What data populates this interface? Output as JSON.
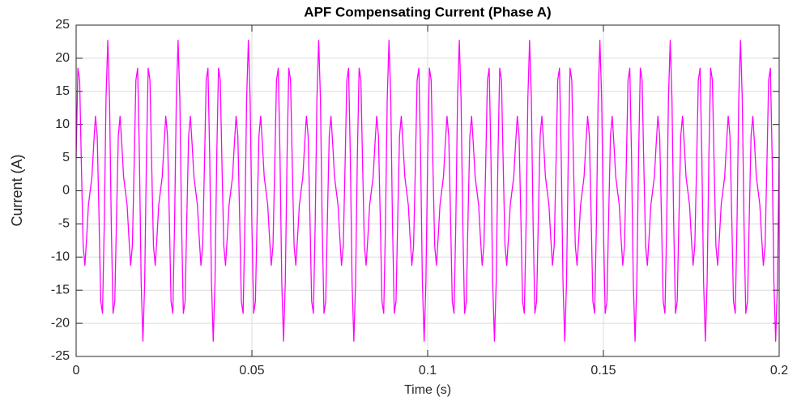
{
  "chart_data": {
    "type": "line",
    "title": "APF Compensating Current (Phase A)",
    "x_label": "Time (s)",
    "y_label": "Current (A)",
    "color": "#ff00ff",
    "grid": true,
    "xlim": [
      0,
      0.2
    ],
    "xticks": [
      0,
      0.05,
      0.1,
      0.15,
      0.2
    ],
    "ylim": [
      -25,
      25
    ],
    "yticks": [
      -25,
      -20,
      -15,
      -10,
      -5,
      0,
      5,
      10,
      15,
      20,
      25
    ],
    "x": [
      0,
      0.0005,
      0.001,
      0.0015,
      0.002,
      0.0025,
      0.003,
      0.0035,
      0.004,
      0.0045,
      0.005,
      0.0055,
      0.006,
      0.0065,
      0.007,
      0.0075,
      0.008,
      0.0085,
      0.009,
      0.0095,
      0.01,
      0.0105,
      0.011,
      0.0115,
      0.012,
      0.0125,
      0.013,
      0.0135,
      0.014,
      0.0145,
      0.015,
      0.0155,
      0.016,
      0.0165,
      0.017,
      0.0175,
      0.018,
      0.0185,
      0.019,
      0.0195,
      0.02,
      0.0205,
      0.021,
      0.0215,
      0.022,
      0.0225,
      0.023,
      0.0235,
      0.024,
      0.0245,
      0.025,
      0.0255,
      0.026,
      0.0265,
      0.027,
      0.0275,
      0.028,
      0.0285,
      0.029,
      0.0295,
      0.03,
      0.0305,
      0.031,
      0.0315,
      0.032,
      0.0325,
      0.033,
      0.0335,
      0.034,
      0.0345,
      0.035,
      0.0355,
      0.036,
      0.0365,
      0.037,
      0.0375,
      0.038,
      0.0385,
      0.039,
      0.0395,
      0.04,
      0.0405,
      0.041,
      0.0415,
      0.042,
      0.0425,
      0.043,
      0.0435,
      0.044,
      0.0445,
      0.045,
      0.0455,
      0.046,
      0.0465,
      0.047,
      0.0475,
      0.048,
      0.0485,
      0.049,
      0.0495,
      0.05,
      0.0505,
      0.051,
      0.0515,
      0.052,
      0.0525,
      0.053,
      0.0535,
      0.054,
      0.0545,
      0.055,
      0.0555,
      0.056,
      0.0565,
      0.057,
      0.0575,
      0.058,
      0.0585,
      0.059,
      0.0595,
      0.06,
      0.0605,
      0.061,
      0.0615,
      0.062,
      0.0625,
      0.063,
      0.0635,
      0.064,
      0.0645,
      0.065,
      0.0655,
      0.066,
      0.0665,
      0.067,
      0.0675,
      0.068,
      0.0685,
      0.069,
      0.0695,
      0.07,
      0.0705,
      0.071,
      0.0715,
      0.072,
      0.0725,
      0.073,
      0.0735,
      0.074,
      0.0745,
      0.075,
      0.0755,
      0.076,
      0.0765,
      0.077,
      0.0775,
      0.078,
      0.0785,
      0.079,
      0.0795,
      0.08,
      0.0805,
      0.081,
      0.0815,
      0.082,
      0.0825,
      0.083,
      0.0835,
      0.084,
      0.0845,
      0.085,
      0.0855,
      0.086,
      0.0865,
      0.087,
      0.0875,
      0.088,
      0.0885,
      0.089,
      0.0895,
      0.09,
      0.0905,
      0.091,
      0.0915,
      0.092,
      0.0925,
      0.093,
      0.0935,
      0.094,
      0.0945,
      0.095,
      0.0955,
      0.096,
      0.0965,
      0.097,
      0.0975,
      0.098,
      0.0985,
      0.099,
      0.0995,
      0.1,
      0.1005,
      0.101,
      0.1015,
      0.102,
      0.1025,
      0.103,
      0.1035,
      0.104,
      0.1045,
      0.105,
      0.1055,
      0.106,
      0.1065,
      0.107,
      0.1075,
      0.108,
      0.1085,
      0.109,
      0.1095,
      0.11,
      0.1105,
      0.111,
      0.1115,
      0.112,
      0.1125,
      0.113,
      0.1135,
      0.114,
      0.1145,
      0.115,
      0.1155,
      0.116,
      0.1165,
      0.117,
      0.1175,
      0.118,
      0.1185,
      0.119,
      0.1195,
      0.12,
      0.1205,
      0.121,
      0.1215,
      0.122,
      0.1225,
      0.123,
      0.1235,
      0.124,
      0.1245,
      0.125,
      0.1255,
      0.126,
      0.1265,
      0.127,
      0.1275,
      0.128,
      0.1285,
      0.129,
      0.1295,
      0.13,
      0.1305,
      0.131,
      0.1315,
      0.132,
      0.1325,
      0.133,
      0.1335,
      0.134,
      0.1345,
      0.135,
      0.1355,
      0.136,
      0.1365,
      0.137,
      0.1375,
      0.138,
      0.1385,
      0.139,
      0.1395,
      0.14,
      0.1405,
      0.141,
      0.1415,
      0.142,
      0.1425,
      0.143,
      0.1435,
      0.144,
      0.1445,
      0.145,
      0.1455,
      0.146,
      0.1465,
      0.147,
      0.1475,
      0.148,
      0.1485,
      0.149,
      0.1495,
      0.15,
      0.1505,
      0.151,
      0.1515,
      0.152,
      0.1525,
      0.153,
      0.1535,
      0.154,
      0.1545,
      0.155,
      0.1555,
      0.156,
      0.1565,
      0.157,
      0.1575,
      0.158,
      0.1585,
      0.159,
      0.1595,
      0.16,
      0.1605,
      0.161,
      0.1615,
      0.162,
      0.1625,
      0.163,
      0.1635,
      0.164,
      0.1645,
      0.165,
      0.1655,
      0.166,
      0.1665,
      0.167,
      0.1675,
      0.168,
      0.1685,
      0.169,
      0.1695,
      0.17,
      0.1705,
      0.171,
      0.1715,
      0.172,
      0.1725,
      0.173,
      0.1735,
      0.174,
      0.1745,
      0.175,
      0.1755,
      0.176,
      0.1765,
      0.177,
      0.1775,
      0.178,
      0.1785,
      0.179,
      0.1795,
      0.18,
      0.1805,
      0.181,
      0.1815,
      0.182,
      0.1825,
      0.183,
      0.1835,
      0.184,
      0.1845,
      0.185,
      0.1855,
      0.186,
      0.1865,
      0.187,
      0.1875,
      0.188,
      0.1885,
      0.189,
      0.1895,
      0.19,
      0.1905,
      0.191,
      0.1915,
      0.192,
      0.1925,
      0.193,
      0.1935,
      0.194,
      0.1945,
      0.195,
      0.1955,
      0.196,
      0.1965,
      0.197,
      0.1975,
      0.198,
      0.1985,
      0.199,
      0.1995,
      0.2
    ],
    "values": [
      5.12,
      18.5,
      16.69,
      3.75,
      -8.27,
      -11.26,
      -6.96,
      -2.15,
      0,
      2.15,
      6.96,
      11.26,
      8.27,
      -3.75,
      -16.69,
      -18.5,
      -5.12,
      13.85,
      22.7,
      13.85,
      -5.12,
      -18.5,
      -16.69,
      -3.75,
      8.27,
      11.26,
      6.96,
      2.15,
      0,
      -2.15,
      -6.96,
      -11.26,
      -8.27,
      3.75,
      16.69,
      18.5,
      5.12,
      -13.85,
      -22.7,
      -13.85,
      5.12,
      18.5,
      16.69,
      3.75,
      -8.27,
      -11.26,
      -6.96,
      -2.15,
      0,
      2.15,
      6.96,
      11.26,
      8.27,
      -3.75,
      -16.69,
      -18.5,
      -5.12,
      13.85,
      22.7,
      13.85,
      -5.12,
      -18.5,
      -16.69,
      -3.75,
      8.27,
      11.26,
      6.96,
      2.15,
      0,
      -2.15,
      -6.96,
      -11.26,
      -8.27,
      3.75,
      16.69,
      18.5,
      5.12,
      -13.85,
      -22.7,
      -13.85,
      5.12,
      18.5,
      16.69,
      3.75,
      -8.27,
      -11.26,
      -6.96,
      -2.15,
      0,
      2.15,
      6.96,
      11.26,
      8.27,
      -3.75,
      -16.69,
      -18.5,
      -5.12,
      13.85,
      22.7,
      13.85,
      -5.12,
      -18.5,
      -16.69,
      -3.75,
      8.27,
      11.26,
      6.96,
      2.15,
      0,
      -2.15,
      -6.96,
      -11.26,
      -8.27,
      3.75,
      16.69,
      18.5,
      5.12,
      -13.85,
      -22.7,
      -13.85,
      5.12,
      18.5,
      16.69,
      3.75,
      -8.27,
      -11.26,
      -6.96,
      -2.15,
      0,
      2.15,
      6.96,
      11.26,
      8.27,
      -3.75,
      -16.69,
      -18.5,
      -5.12,
      13.85,
      22.7,
      13.85,
      -5.12,
      -18.5,
      -16.69,
      -3.75,
      8.27,
      11.26,
      6.96,
      2.15,
      0,
      -2.15,
      -6.96,
      -11.26,
      -8.27,
      3.75,
      16.69,
      18.5,
      5.12,
      -13.85,
      -22.7,
      -13.85,
      5.12,
      18.5,
      16.69,
      3.75,
      -8.27,
      -11.26,
      -6.96,
      -2.15,
      0,
      2.15,
      6.96,
      11.26,
      8.27,
      -3.75,
      -16.69,
      -18.5,
      -5.12,
      13.85,
      22.7,
      13.85,
      -5.12,
      -18.5,
      -16.69,
      -3.75,
      8.27,
      11.26,
      6.96,
      2.15,
      0,
      -2.15,
      -6.96,
      -11.26,
      -8.27,
      3.75,
      16.69,
      18.5,
      5.12,
      -13.85,
      -22.7,
      -13.85,
      5.12,
      18.5,
      16.69,
      3.75,
      -8.27,
      -11.26,
      -6.96,
      -2.15,
      0,
      2.15,
      6.96,
      11.26,
      8.27,
      -3.75,
      -16.69,
      -18.5,
      -5.12,
      13.85,
      22.7,
      13.85,
      -5.12,
      -18.5,
      -16.69,
      -3.75,
      8.27,
      11.26,
      6.96,
      2.15,
      0,
      -2.15,
      -6.96,
      -11.26,
      -8.27,
      3.75,
      16.69,
      18.5,
      5.12,
      -13.85,
      -22.7,
      -13.85,
      5.12,
      18.5,
      16.69,
      3.75,
      -8.27,
      -11.26,
      -6.96,
      -2.15,
      0,
      2.15,
      6.96,
      11.26,
      8.27,
      -3.75,
      -16.69,
      -18.5,
      -5.12,
      13.85,
      22.7,
      13.85,
      -5.12,
      -18.5,
      -16.69,
      -3.75,
      8.27,
      11.26,
      6.96,
      2.15,
      0,
      -2.15,
      -6.96,
      -11.26,
      -8.27,
      3.75,
      16.69,
      18.5,
      5.12,
      -13.85,
      -22.7,
      -13.85,
      5.12,
      18.5,
      16.69,
      3.75,
      -8.27,
      -11.26,
      -6.96,
      -2.15,
      0,
      2.15,
      6.96,
      11.26,
      8.27,
      -3.75,
      -16.69,
      -18.5,
      -5.12,
      13.85,
      22.7,
      13.85,
      -5.12,
      -18.5,
      -16.69,
      -3.75,
      8.27,
      11.26,
      6.96,
      2.15,
      0,
      -2.15,
      -6.96,
      -11.26,
      -8.27,
      3.75,
      16.69,
      18.5,
      5.12,
      -13.85,
      -22.7,
      -13.85,
      5.12,
      18.5,
      16.69,
      3.75,
      -8.27,
      -11.26,
      -6.96,
      -2.15,
      0,
      2.15,
      6.96,
      11.26,
      8.27,
      -3.75,
      -16.69,
      -18.5,
      -5.12,
      13.85,
      22.7,
      13.85,
      -5.12,
      -18.5,
      -16.69,
      -3.75,
      8.27,
      11.26,
      6.96,
      2.15,
      0,
      -2.15,
      -6.96,
      -11.26,
      -8.27,
      3.75,
      16.69,
      18.5,
      5.12,
      -13.85,
      -22.7,
      -13.85,
      5.12,
      18.5,
      16.69,
      3.75,
      -8.27,
      -11.26,
      -6.96,
      -2.15,
      0,
      2.15,
      6.96,
      11.26,
      8.27,
      -3.75,
      -16.69,
      -18.5,
      -5.12,
      13.85,
      22.7,
      13.85,
      -5.12,
      -18.5,
      -16.69,
      -3.75,
      8.27,
      11.26,
      6.96,
      2.15,
      0,
      -2.15,
      -6.96,
      -11.26,
      -8.27,
      3.75,
      16.69,
      18.5,
      5.12,
      -13.85,
      -22.7,
      -13.85,
      5.12
    ]
  }
}
